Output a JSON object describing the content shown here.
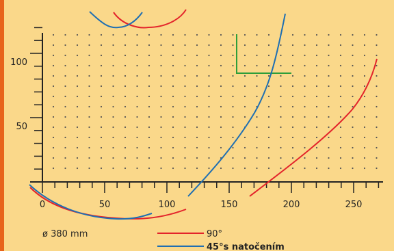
{
  "chart_data": {
    "type": "line",
    "x_ticks": [
      "0",
      "50",
      "100",
      "150",
      "200",
      "250"
    ],
    "y_ticks": [
      "50",
      "100"
    ],
    "xlim": [
      0,
      270
    ],
    "ylim": [
      -15,
      125
    ],
    "grid": true,
    "annotation": "ø 380 mm",
    "legend": [
      {
        "label": "90°",
        "color": "#e3242b"
      },
      {
        "label": "45°s natočením",
        "color": "#1f6fb2"
      }
    ],
    "series": [
      {
        "name": "90°",
        "color": "#e3242b"
      },
      {
        "name": "45°s natočením",
        "color": "#1f6fb2"
      }
    ]
  },
  "colors": {
    "left_accent": "#e8641b",
    "background": "#fad88a",
    "marker": "#2e9e3a"
  }
}
